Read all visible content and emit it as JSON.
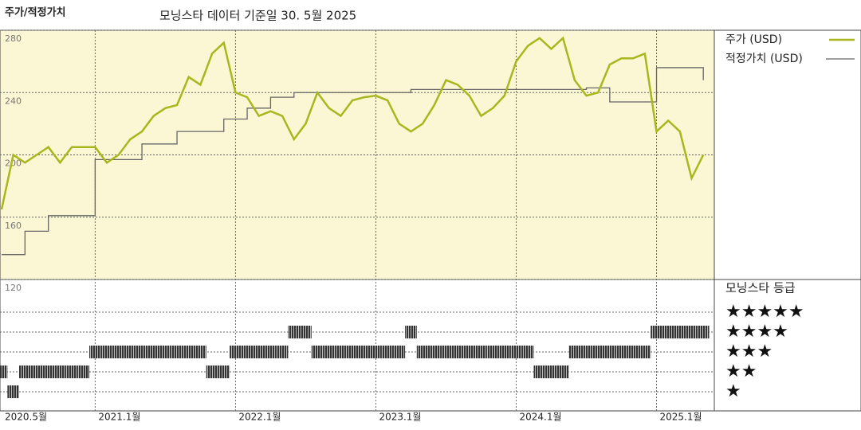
{
  "chart_data": {
    "type": "line",
    "title": "주가/적정가치",
    "subtitle": "모닝스타 데이터 기준일 30. 5월 2025",
    "x": [
      "2020-05",
      "2020-06",
      "2020-07",
      "2020-08",
      "2020-09",
      "2020-10",
      "2020-11",
      "2020-12",
      "2021-01",
      "2021-02",
      "2021-03",
      "2021-04",
      "2021-05",
      "2021-06",
      "2021-07",
      "2021-08",
      "2021-09",
      "2021-10",
      "2021-11",
      "2021-12",
      "2022-01",
      "2022-02",
      "2022-03",
      "2022-04",
      "2022-05",
      "2022-06",
      "2022-07",
      "2022-08",
      "2022-09",
      "2022-10",
      "2022-11",
      "2022-12",
      "2023-01",
      "2023-02",
      "2023-03",
      "2023-04",
      "2023-05",
      "2023-06",
      "2023-07",
      "2023-08",
      "2023-09",
      "2023-10",
      "2023-11",
      "2023-12",
      "2024-01",
      "2024-02",
      "2024-03",
      "2024-04",
      "2024-05",
      "2024-06",
      "2024-07",
      "2024-08",
      "2024-09",
      "2024-10",
      "2024-11",
      "2024-12",
      "2025-01",
      "2025-02",
      "2025-03",
      "2025-04",
      "2025-05"
    ],
    "xticks": [
      {
        "value": "2020-05",
        "label": "2020.5월"
      },
      {
        "value": "2021-01",
        "label": "2021.1월"
      },
      {
        "value": "2022-01",
        "label": "2022.1월"
      },
      {
        "value": "2023-01",
        "label": "2023.1월"
      },
      {
        "value": "2024-01",
        "label": "2024.1월"
      },
      {
        "value": "2025-01",
        "label": "2025.1월"
      }
    ],
    "ylim": [
      120,
      280
    ],
    "yticks": [
      120,
      160,
      200,
      240,
      280
    ],
    "grid": true,
    "series": [
      {
        "name": "주가 (USD)",
        "color": "#a9b61e",
        "values": [
          165,
          200,
          195,
          200,
          205,
          195,
          205,
          205,
          205,
          195,
          200,
          210,
          215,
          225,
          230,
          232,
          250,
          245,
          265,
          272,
          240,
          237,
          225,
          228,
          225,
          210,
          220,
          240,
          230,
          225,
          235,
          237,
          238,
          235,
          220,
          215,
          220,
          232,
          248,
          245,
          238,
          225,
          230,
          238,
          260,
          270,
          275,
          268,
          275,
          248,
          238,
          240,
          258,
          262,
          262,
          265,
          215,
          222,
          215,
          185,
          200
        ]
      },
      {
        "name": "적정가치 (USD)",
        "color": "#666666",
        "step": true,
        "values": [
          136,
          136,
          151,
          151,
          161,
          161,
          161,
          161,
          197,
          197,
          197,
          197,
          207,
          207,
          207,
          215,
          215,
          215,
          215,
          223,
          223,
          230,
          230,
          237,
          237,
          240,
          240,
          240,
          240,
          240,
          240,
          240,
          240,
          240,
          240,
          242,
          242,
          242,
          242,
          242,
          242,
          242,
          242,
          242,
          242,
          242,
          242,
          242,
          242,
          242,
          243,
          243,
          234,
          234,
          234,
          234,
          256,
          256,
          256,
          256,
          248
        ]
      }
    ],
    "rating": {
      "title": "모닝스타 등급",
      "labels": [
        "★",
        "★★",
        "★★★",
        "★★★★",
        "★★★★★"
      ],
      "values": [
        2,
        1,
        2,
        2,
        2,
        2,
        2,
        2,
        3,
        3,
        3,
        3,
        3,
        3,
        3,
        3,
        3,
        3,
        2,
        2,
        3,
        3,
        3,
        3,
        3,
        4,
        4,
        3,
        3,
        3,
        3,
        3,
        3,
        3,
        3,
        4,
        3,
        3,
        3,
        3,
        3,
        3,
        3,
        3,
        3,
        3,
        2,
        2,
        2,
        3,
        3,
        3,
        3,
        3,
        3,
        3,
        4,
        4,
        4,
        4,
        4
      ]
    }
  }
}
